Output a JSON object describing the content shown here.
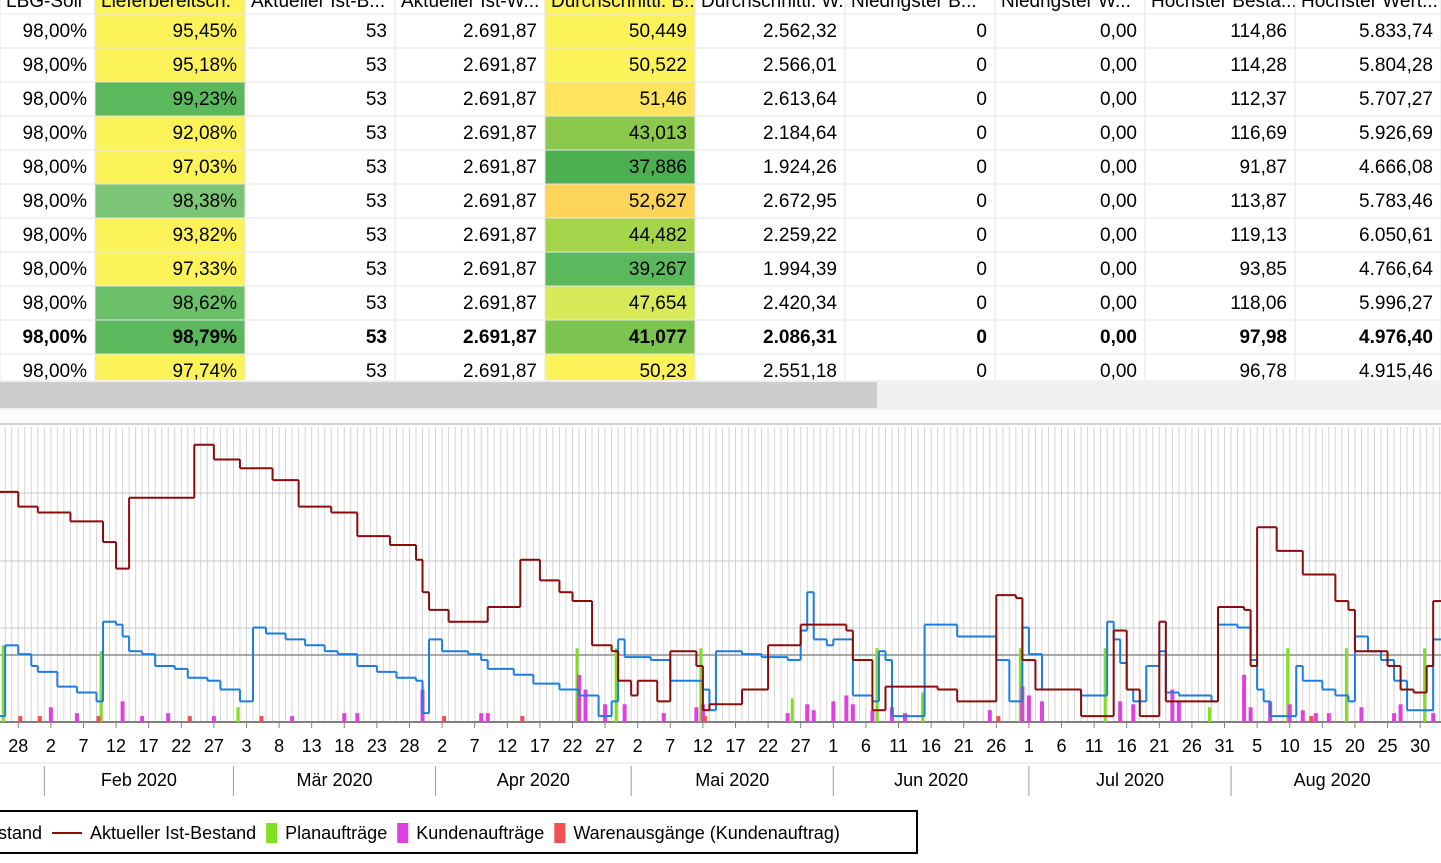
{
  "table": {
    "header": [
      "LBG-Soll",
      "Lieferbereitsch.",
      "Aktueller Ist-B...",
      "Aktueller Ist-W...",
      "Durchschnittl. B...",
      "Durchschnittl. W...",
      "Niedrigster B...",
      "Niedrigster W...",
      "Höchster Besta...",
      "Höchster Wert..."
    ],
    "rows": [
      {
        "cells": [
          "98,00%",
          "95,45%",
          "53",
          "2.691,87",
          "50,449",
          "2.562,32",
          "0",
          "0,00",
          "114,86",
          "5.833,74"
        ],
        "fills": [
          "#fcf35a",
          "#fcf35a"
        ]
      },
      {
        "cells": [
          "98,00%",
          "95,18%",
          "53",
          "2.691,87",
          "50,522",
          "2.566,01",
          "0",
          "0,00",
          "114,28",
          "5.804,28"
        ],
        "fills": [
          "#fcf35a",
          "#fcf35a"
        ]
      },
      {
        "cells": [
          "98,00%",
          "99,23%",
          "53",
          "2.691,87",
          "51,46",
          "2.613,64",
          "0",
          "0,00",
          "112,37",
          "5.707,27"
        ],
        "fills": [
          "#5cb85c",
          "#fde35e"
        ]
      },
      {
        "cells": [
          "98,00%",
          "92,08%",
          "53",
          "2.691,87",
          "43,013",
          "2.184,64",
          "0",
          "0,00",
          "116,69",
          "5.926,69"
        ],
        "fills": [
          "#fcf35a",
          "#8cc84b"
        ]
      },
      {
        "cells": [
          "98,00%",
          "97,03%",
          "53",
          "2.691,87",
          "37,886",
          "1.924,26",
          "0",
          "0,00",
          "91,87",
          "4.666,08"
        ],
        "fills": [
          "#fcf35a",
          "#4caf50"
        ]
      },
      {
        "cells": [
          "98,00%",
          "98,38%",
          "53",
          "2.691,87",
          "52,627",
          "2.672,95",
          "0",
          "0,00",
          "113,87",
          "5.783,46"
        ],
        "fills": [
          "#7cc576",
          "#fdd45a"
        ]
      },
      {
        "cells": [
          "98,00%",
          "93,82%",
          "53",
          "2.691,87",
          "44,482",
          "2.259,22",
          "0",
          "0,00",
          "119,13",
          "6.050,61"
        ],
        "fills": [
          "#fcf35a",
          "#a4d44a"
        ]
      },
      {
        "cells": [
          "98,00%",
          "97,33%",
          "53",
          "2.691,87",
          "39,267",
          "1.994,39",
          "0",
          "0,00",
          "93,85",
          "4.766,64"
        ],
        "fills": [
          "#fcf35a",
          "#5cb85c"
        ]
      },
      {
        "cells": [
          "98,00%",
          "98,62%",
          "53",
          "2.691,87",
          "47,654",
          "2.420,34",
          "0",
          "0,00",
          "118,06",
          "5.996,27"
        ],
        "fills": [
          "#6cc06a",
          "#d8ea5a"
        ]
      },
      {
        "cells": [
          "98,00%",
          "98,79%",
          "53",
          "2.691,87",
          "41,077",
          "2.086,31",
          "0",
          "0,00",
          "97,98",
          "4.976,40"
        ],
        "fills": [
          "#5cb85c",
          "#7cc450"
        ],
        "bold": true
      },
      {
        "cells": [
          "98,00%",
          "97,74%",
          "53",
          "2.691,87",
          "50,23",
          "2.551,18",
          "0",
          "0,00",
          "96,78",
          "4.915,46"
        ],
        "fills": [
          "#fcf35a",
          "#fcf35a"
        ]
      }
    ]
  },
  "chart_data": {
    "type": "line",
    "xlim": [
      25.2,
      246.2
    ],
    "ylim": [
      0,
      100
    ],
    "xticks": [
      {
        "value": 28,
        "label": "28"
      },
      {
        "value": 33,
        "label": "2"
      },
      {
        "value": 38,
        "label": "7"
      },
      {
        "value": 43,
        "label": "12"
      },
      {
        "value": 48,
        "label": "17"
      },
      {
        "value": 53,
        "label": "22"
      },
      {
        "value": 58,
        "label": "27"
      },
      {
        "value": 63,
        "label": "3"
      },
      {
        "value": 68,
        "label": "8"
      },
      {
        "value": 73,
        "label": "13"
      },
      {
        "value": 78,
        "label": "18"
      },
      {
        "value": 83,
        "label": "23"
      },
      {
        "value": 88,
        "label": "28"
      },
      {
        "value": 93,
        "label": "2"
      },
      {
        "value": 98,
        "label": "7"
      },
      {
        "value": 103,
        "label": "12"
      },
      {
        "value": 108,
        "label": "17"
      },
      {
        "value": 113,
        "label": "22"
      },
      {
        "value": 118,
        "label": "27"
      },
      {
        "value": 123,
        "label": "2"
      },
      {
        "value": 128,
        "label": "7"
      },
      {
        "value": 133,
        "label": "12"
      },
      {
        "value": 138,
        "label": "17"
      },
      {
        "value": 143,
        "label": "22"
      },
      {
        "value": 148,
        "label": "27"
      },
      {
        "value": 153,
        "label": "1"
      },
      {
        "value": 158,
        "label": "6"
      },
      {
        "value": 163,
        "label": "11"
      },
      {
        "value": 168,
        "label": "16"
      },
      {
        "value": 173,
        "label": "21"
      },
      {
        "value": 178,
        "label": "26"
      },
      {
        "value": 183,
        "label": "1"
      },
      {
        "value": 188,
        "label": "6"
      },
      {
        "value": 193,
        "label": "11"
      },
      {
        "value": 198,
        "label": "16"
      },
      {
        "value": 203,
        "label": "21"
      },
      {
        "value": 208,
        "label": "26"
      },
      {
        "value": 213,
        "label": "31"
      },
      {
        "value": 218,
        "label": "5"
      },
      {
        "value": 223,
        "label": "10"
      },
      {
        "value": 228,
        "label": "15"
      },
      {
        "value": 233,
        "label": "20"
      },
      {
        "value": 238,
        "label": "25"
      },
      {
        "value": 243,
        "label": "30"
      }
    ],
    "months": [
      "Feb 2020",
      "Mär 2020",
      "Apr 2020",
      "Mai 2020",
      "Jun 2020",
      "Jul 2020",
      "Aug 2020"
    ],
    "series": [
      {
        "name": "stand",
        "type": "step",
        "color": "#1c7ce0",
        "x": [
          25,
          26,
          28,
          30,
          31,
          34,
          37,
          40,
          41,
          43,
          44,
          45,
          47,
          49,
          52,
          54,
          57,
          59,
          62,
          64,
          66,
          69,
          72,
          75,
          77,
          80,
          83,
          86,
          89,
          90,
          91,
          93,
          97,
          99,
          100,
          104,
          107,
          111,
          114,
          117,
          119,
          120,
          121,
          125,
          128,
          133,
          134,
          135,
          139,
          142,
          146,
          148,
          149,
          150,
          152,
          153,
          156,
          159,
          160,
          161,
          162,
          167,
          172,
          178,
          180,
          182,
          183,
          185,
          191,
          195,
          196,
          197,
          198,
          199,
          201,
          203,
          204,
          206,
          211,
          212,
          215,
          217,
          218,
          219,
          220,
          224,
          225,
          228,
          230,
          232,
          233,
          235,
          237,
          239,
          241,
          245
        ],
        "values": [
          2,
          26,
          23,
          19,
          17,
          12,
          10,
          7,
          34,
          33,
          29,
          24,
          23,
          19,
          18,
          15,
          14,
          11,
          7,
          32,
          30,
          28,
          26,
          24,
          23,
          19,
          17,
          15,
          14,
          3,
          28,
          24,
          23,
          21,
          18,
          16,
          13,
          11,
          9,
          2,
          7,
          28,
          22,
          21,
          14,
          11,
          4,
          24,
          23,
          22,
          21,
          31,
          44,
          28,
          26,
          28,
          9,
          7,
          24,
          21,
          2,
          33,
          29,
          21,
          7,
          32,
          23,
          11,
          9,
          34,
          28,
          20,
          11,
          7,
          19,
          24,
          10,
          9,
          7,
          33,
          32,
          21,
          11,
          7,
          2,
          19,
          14,
          11,
          9,
          7,
          29,
          24,
          21,
          14,
          4,
          28
        ]
      },
      {
        "name": "Aktueller Ist-Bestand",
        "type": "step",
        "color": "#8b0a0a",
        "x": [
          25,
          28,
          31,
          36,
          41,
          43,
          45,
          55,
          58,
          62,
          67,
          71,
          76,
          80,
          85,
          89,
          90,
          91,
          94,
          100,
          105,
          108,
          111,
          113,
          116,
          119,
          120,
          122,
          123,
          126,
          128,
          132,
          133,
          134,
          139,
          143,
          148,
          155,
          156,
          159,
          161,
          169,
          172,
          178,
          181,
          182,
          184,
          191,
          196,
          198,
          200,
          203,
          204,
          212,
          216,
          217,
          218,
          221,
          225,
          230,
          232,
          233,
          238,
          240,
          242,
          244,
          245
        ],
        "values": [
          78,
          73,
          71,
          68,
          61,
          52,
          76,
          94,
          89,
          86,
          82,
          73,
          71,
          63,
          60,
          55,
          44,
          38,
          34,
          39,
          55,
          48,
          44,
          41,
          26,
          24,
          14,
          9,
          14,
          7,
          24,
          19,
          4,
          6,
          11,
          26,
          33,
          31,
          21,
          4,
          12,
          11,
          7,
          43,
          42,
          21,
          11,
          2,
          31,
          11,
          2,
          34,
          7,
          39,
          38,
          19,
          66,
          58,
          50,
          41,
          38,
          24,
          19,
          11,
          10,
          19,
          41
        ]
      },
      {
        "name": "Planaufträge",
        "type": "bar",
        "color": "#80e020",
        "x": [
          26,
          41,
          62,
          114,
          120,
          133,
          147,
          160,
          167,
          182,
          195,
          211,
          223,
          232,
          244
        ],
        "values": [
          26,
          24,
          5,
          25,
          25,
          25,
          8,
          25,
          10,
          25,
          25,
          5,
          25,
          25,
          25
        ]
      },
      {
        "name": "Kundenaufträge",
        "type": "bar",
        "color": "#e040e0",
        "x": [
          33,
          37,
          44,
          47,
          51,
          58,
          70,
          78,
          80,
          90,
          99,
          100,
          114,
          115,
          118,
          121,
          127,
          132,
          133,
          146,
          149,
          150,
          153,
          155,
          156,
          159,
          162,
          164,
          177,
          182,
          183,
          185,
          197,
          199,
          205,
          206,
          216,
          217,
          220,
          223,
          225,
          227,
          229,
          234,
          239,
          240,
          245
        ],
        "values": [
          5,
          3,
          7,
          2,
          3,
          2,
          2,
          3,
          3,
          11,
          3,
          3,
          16,
          11,
          6,
          6,
          3,
          5,
          6,
          3,
          6,
          4,
          7,
          9,
          6,
          4,
          5,
          3,
          4,
          12,
          9,
          7,
          7,
          6,
          11,
          7,
          16,
          5,
          7,
          6,
          4,
          3,
          3,
          5,
          3,
          6,
          3
        ]
      },
      {
        "name": "Warenausgänge (Kundenauftrag)",
        "type": "bar",
        "color": "#f05050",
        "x": [
          28,
          31,
          40,
          54,
          65,
          93,
          105,
          133,
          178,
          226
        ],
        "values": [
          2,
          2,
          2,
          2,
          2,
          2,
          2,
          2,
          2,
          2
        ]
      }
    ]
  }
}
